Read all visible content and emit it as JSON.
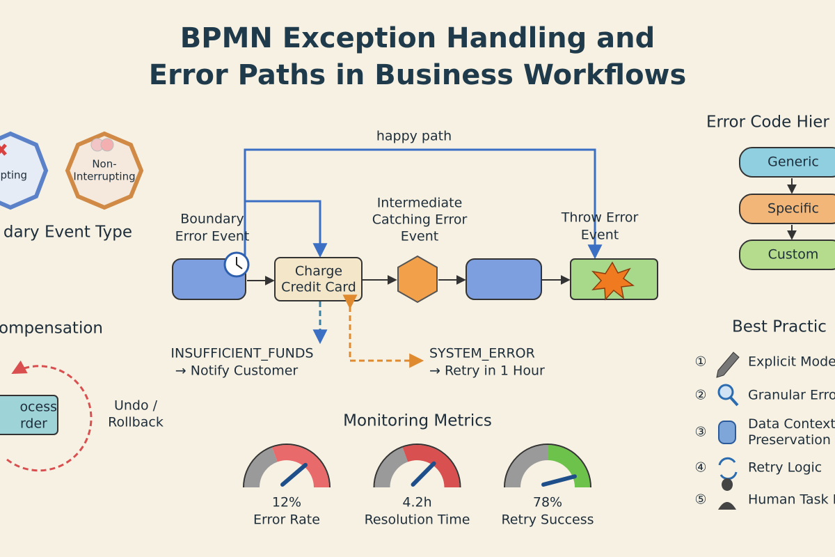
{
  "header": {
    "title_lines": [
      "BPMN Exception Handling and",
      "Error Paths in Business Workflows"
    ]
  },
  "boundary_event_types": {
    "title": "dary Event Type",
    "types": [
      {
        "lines": [
          "upting"
        ]
      },
      {
        "lines": [
          "Non-",
          "Interrupting"
        ]
      }
    ]
  },
  "flow": {
    "happy_path": "happy path",
    "boundary_label": [
      "Boundary",
      "Error Event"
    ],
    "intermediate_label": [
      "Intermediate",
      "Catching Error",
      "Event"
    ],
    "throw_label": [
      "Throw Error",
      "Event"
    ],
    "task": [
      "Charge",
      "Credit Card"
    ],
    "errors": [
      {
        "code": "INSUFFICIENT_FUNDS",
        "action": "→ Notify Customer"
      },
      {
        "code": "SYSTEM_ERROR",
        "action": "→ Retry in 1 Hour"
      }
    ]
  },
  "compensation": {
    "title": "ompensation",
    "task": [
      "ocess",
      "rder"
    ],
    "action": [
      "Undo /",
      "Rollback"
    ]
  },
  "monitoring": {
    "title": "Monitoring Metrics",
    "gauges": [
      {
        "value": "12%",
        "label": "Error Rate"
      },
      {
        "value": "4.2h",
        "label": "Resolution Time"
      },
      {
        "value": "78%",
        "label": "Retry Success"
      }
    ]
  },
  "error_codes": {
    "title": "Error Code Hier",
    "levels": [
      "Generic",
      "Specific",
      "Custom"
    ]
  },
  "best_practices": {
    "title": "Best Practic",
    "items": [
      {
        "marker": "①",
        "lines": [
          "Explicit Mode"
        ]
      },
      {
        "marker": "②",
        "lines": [
          "Granular Erro"
        ]
      },
      {
        "marker": "③",
        "lines": [
          "Data Context",
          "Preservation"
        ]
      },
      {
        "marker": "④",
        "lines": [
          "Retry Logic"
        ]
      },
      {
        "marker": "⑤",
        "lines": [
          "Human Task I"
        ]
      }
    ]
  }
}
